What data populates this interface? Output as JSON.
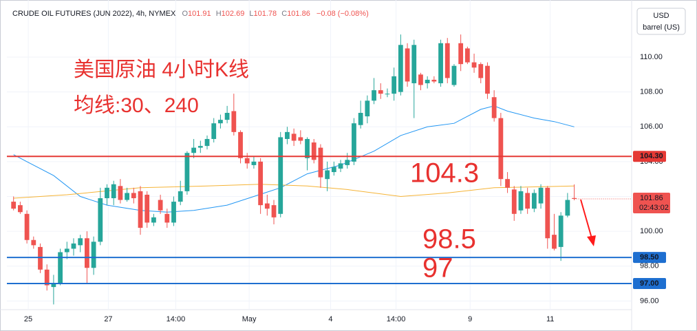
{
  "chart_data": {
    "type": "candlestick",
    "title": "CRUDE OIL FUTURES (JUN 2022), 4h, NYMEX",
    "header": {
      "open_label": "O",
      "open": 101.91,
      "high_label": "H",
      "high": 102.69,
      "low_label": "L",
      "low": 101.78,
      "close_label": "C",
      "close": 101.86,
      "change": "−0.08 (−0.08%)"
    },
    "currency": "USD",
    "unit": "barrel (US)",
    "up_color": "#26a69a",
    "down_color": "#ef5350",
    "grid": true,
    "xlim": [
      -1,
      92.6
    ],
    "ylim": [
      95.5,
      113.28
    ],
    "xticks": [
      {
        "value": 2.2,
        "label": "25"
      },
      {
        "value": 14.2,
        "label": "27"
      },
      {
        "value": 24.3,
        "label": "14:00"
      },
      {
        "value": 35.3,
        "label": "May"
      },
      {
        "value": 47.5,
        "label": "4"
      },
      {
        "value": 57.3,
        "label": "14:00"
      },
      {
        "value": 68.4,
        "label": "9"
      },
      {
        "value": 80.4,
        "label": "11"
      }
    ],
    "yticks": [
      {
        "value": 96,
        "label": "96.00"
      },
      {
        "value": 98,
        "label": "98.00"
      },
      {
        "value": 100,
        "label": "100.00"
      },
      {
        "value": 102,
        "label": "102.00"
      },
      {
        "value": 104,
        "label": "104.00"
      },
      {
        "value": 106,
        "label": "106.00"
      },
      {
        "value": 108,
        "label": "108.00"
      },
      {
        "value": 110,
        "label": "110.00"
      }
    ],
    "x": [
      0,
      1,
      2,
      3,
      4,
      5,
      6,
      7,
      8,
      9,
      10,
      11,
      12,
      13,
      14,
      15,
      16,
      17,
      18,
      19,
      20,
      21,
      22,
      23,
      24,
      25,
      26,
      27,
      28,
      29,
      30,
      31,
      32,
      33,
      34,
      35,
      36,
      37,
      38,
      39,
      40,
      41,
      42,
      43,
      44,
      45,
      46,
      47,
      48,
      49,
      50,
      51,
      52,
      53,
      54,
      55,
      56,
      57,
      58,
      59,
      60,
      61,
      62,
      63,
      64,
      65,
      66,
      67,
      68,
      69,
      70,
      71,
      72,
      73,
      74,
      75,
      76,
      77,
      78,
      79,
      80,
      81,
      82,
      83,
      84
    ],
    "open": [
      101.7,
      101.5,
      101.0,
      99.5,
      99.1,
      97.8,
      96.8,
      97.0,
      98.8,
      99.0,
      99.2,
      99.6,
      97.9,
      99.4,
      101.9,
      101.9,
      102.6,
      101.8,
      102.2,
      102.3,
      102.1,
      100.5,
      101.8,
      101.0,
      100.5,
      101.7,
      102.3,
      104.5,
      104.8,
      104.9,
      105.3,
      106.2,
      106.4,
      106.9,
      105.7,
      104.2,
      103.8,
      104.0,
      101.6,
      101.5,
      101.0,
      105.3,
      105.6,
      105.4,
      104.2,
      105.1,
      104.8,
      103.0,
      103.4,
      103.6,
      103.8,
      104.0,
      106.1,
      106.6,
      107.5,
      108.1,
      107.9,
      107.9,
      108.0,
      110.5,
      108.5,
      109.0,
      108.5,
      108.7,
      108.5,
      110.8,
      108.4,
      110.8,
      110.5,
      109.7,
      109.6,
      109.5,
      107.7,
      106.5,
      103.0,
      102.4,
      101.2,
      102.2,
      101.3,
      101.6,
      102.5,
      99.8,
      99.1,
      100.9,
      101.91
    ],
    "high": [
      102.0,
      101.7,
      101.2,
      99.7,
      99.3,
      98.1,
      97.5,
      99.0,
      99.4,
      99.6,
      99.8,
      100.0,
      99.7,
      102.5,
      102.7,
      102.9,
      103.0,
      102.5,
      102.5,
      102.6,
      102.3,
      101.0,
      102.1,
      101.3,
      102.0,
      102.9,
      104.6,
      105.3,
      105.2,
      105.5,
      106.5,
      106.7,
      107.2,
      107.9,
      105.8,
      104.5,
      104.3,
      104.2,
      102.1,
      101.8,
      105.7,
      106.0,
      105.9,
      105.8,
      105.4,
      105.3,
      105.0,
      104.0,
      104.0,
      104.1,
      104.5,
      106.5,
      107.5,
      107.8,
      108.8,
      108.5,
      108.2,
      109.4,
      111.3,
      110.8,
      111.0,
      109.1,
      108.9,
      108.9,
      111.0,
      111.1,
      109.6,
      111.3,
      110.6,
      110.2,
      109.7,
      109.7,
      108.1,
      106.8,
      103.4,
      102.6,
      102.6,
      102.5,
      102.4,
      102.7,
      102.6,
      101.0,
      101.1,
      102.2,
      102.69
    ],
    "low": [
      101.2,
      101.0,
      99.3,
      99.0,
      97.6,
      96.6,
      95.8,
      96.9,
      98.4,
      98.6,
      98.8,
      97.0,
      97.5,
      99.2,
      101.5,
      101.5,
      101.6,
      101.7,
      101.6,
      99.8,
      100.2,
      100.3,
      101.0,
      100.2,
      100.3,
      101.5,
      102.1,
      104.2,
      104.5,
      104.7,
      105.1,
      105.9,
      106.2,
      105.5,
      103.9,
      103.6,
      103.6,
      101.0,
      100.9,
      100.4,
      100.8,
      105.0,
      104.9,
      105.0,
      103.5,
      103.9,
      102.5,
      102.3,
      103.2,
      103.4,
      103.6,
      103.8,
      105.9,
      106.2,
      107.3,
      107.6,
      107.7,
      107.5,
      107.8,
      108.3,
      106.5,
      108.1,
      108.2,
      108.5,
      108.3,
      108.5,
      108.3,
      109.2,
      109.6,
      109.1,
      108.5,
      107.6,
      106.3,
      102.6,
      102.2,
      100.6,
      101.0,
      101.0,
      101.1,
      101.3,
      99.0,
      98.9,
      98.3,
      100.8,
      101.78
    ],
    "close": [
      101.3,
      101.1,
      99.5,
      99.2,
      97.8,
      96.9,
      97.0,
      98.8,
      99.0,
      99.3,
      99.6,
      97.9,
      99.4,
      101.9,
      102.5,
      102.7,
      101.8,
      102.2,
      101.9,
      100.2,
      100.5,
      100.8,
      101.2,
      100.5,
      101.7,
      102.3,
      104.5,
      104.8,
      104.9,
      105.3,
      106.2,
      106.4,
      106.8,
      105.7,
      104.2,
      103.9,
      104.0,
      101.5,
      101.3,
      100.8,
      105.4,
      105.7,
      105.2,
      105.2,
      105.3,
      104.1,
      103.1,
      103.5,
      103.7,
      103.9,
      104.1,
      106.2,
      106.8,
      107.5,
      108.1,
      107.9,
      107.9,
      108.9,
      110.7,
      108.6,
      110.7,
      108.4,
      108.7,
      108.6,
      110.8,
      108.8,
      109.5,
      109.6,
      109.7,
      109.4,
      108.8,
      107.9,
      106.5,
      103.0,
      102.5,
      101.0,
      102.3,
      101.3,
      102.2,
      102.5,
      99.6,
      99.0,
      100.9,
      101.8,
      101.86
    ],
    "moving_averages": [
      {
        "color": "#2196f3",
        "x": [
          0,
          2,
          6,
          10,
          14,
          19,
          23,
          27,
          32,
          36,
          40,
          44,
          49,
          54,
          58,
          62,
          66,
          70,
          72,
          74,
          78,
          81,
          84
        ],
        "values": [
          104.4,
          104.0,
          103.2,
          102.0,
          101.5,
          101.2,
          101.1,
          101.2,
          101.5,
          102.0,
          102.5,
          103.3,
          103.8,
          104.6,
          105.5,
          106.0,
          106.2,
          107.0,
          107.2,
          106.9,
          106.5,
          106.3,
          106.0
        ]
      },
      {
        "color": "#f5b335",
        "x": [
          0,
          8,
          19,
          29,
          37,
          44,
          50,
          58,
          65,
          72,
          84
        ],
        "values": [
          101.9,
          102.1,
          102.5,
          102.6,
          102.7,
          102.6,
          102.4,
          102.0,
          102.2,
          102.5,
          102.6
        ]
      }
    ],
    "levels": [
      {
        "value": 104.3,
        "label": "104.30",
        "color": "#e53935"
      },
      {
        "value": 98.5,
        "label": "98.50",
        "color": "#1e6fd0"
      },
      {
        "value": 97,
        "label": "97.00",
        "color": "#1e6fd0"
      }
    ],
    "last_price": {
      "value": 101.86,
      "countdown": "02:43:02",
      "color": "#ef5350"
    },
    "annotations": [
      "美国原油 4小时K线",
      "均线:30、240",
      "104.3",
      "98.5",
      "97"
    ]
  }
}
